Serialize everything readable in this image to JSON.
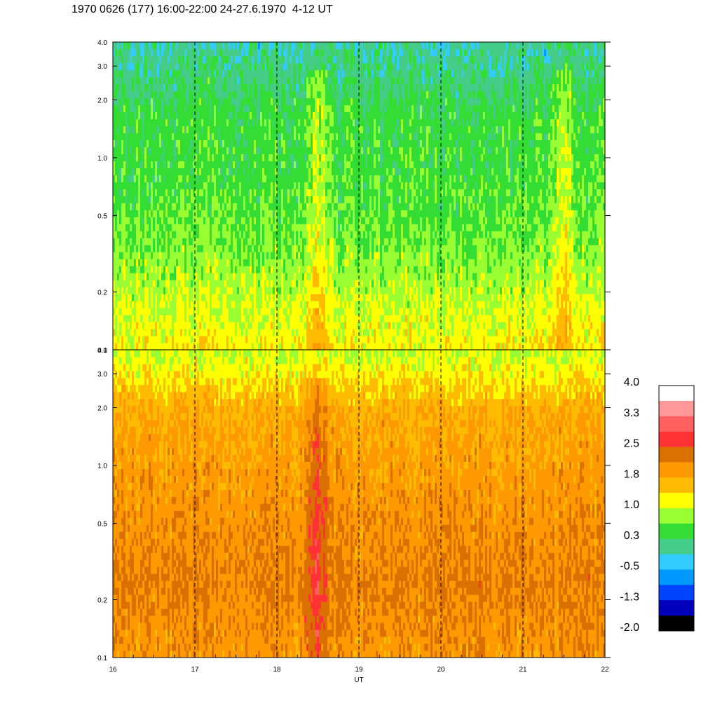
{
  "title": "1970 0626 (177) 16:00-22:00 24-27.6.1970  4-12 UT",
  "chart_data": {
    "type": "heatmap",
    "xlabel": "UT",
    "x_ticks": [
      "16",
      "17",
      "18",
      "19",
      "20",
      "21",
      "22"
    ],
    "x_range": [
      16,
      22
    ],
    "x_minor_step": 0.25,
    "dashed_time_markers": [
      17,
      18,
      19,
      20,
      21
    ],
    "panels": [
      {
        "name": "",
        "y_scale": "log",
        "y_range": [
          0.1,
          4.0
        ],
        "y_ticks": [
          "0.1",
          "0.2",
          "0.5",
          "1.0",
          "2.0",
          "3.0",
          "4.0"
        ],
        "description_level": "low",
        "bright_features_ut": [
          18.5,
          21.5
        ]
      },
      {
        "name": "",
        "y_scale": "log",
        "y_range": [
          0.1,
          4.0
        ],
        "y_ticks": [
          "0.1",
          "0.2",
          "0.5",
          "1.0",
          "2.0",
          "3.0",
          "4.0"
        ],
        "description_level": "high",
        "bright_features_ut": [
          18.5
        ]
      }
    ],
    "colorbar": {
      "labels": [
        "4.0",
        "3.3",
        "2.5",
        "1.8",
        "1.0",
        "0.3",
        "-0.5",
        "-1.3",
        "-2.0"
      ],
      "colors": [
        "#ffffff",
        "#ff9999",
        "#ff6060",
        "#ff3333",
        "#d97000",
        "#ff9900",
        "#ffbb00",
        "#ffff00",
        "#99ff33",
        "#33dd33",
        "#44cc88",
        "#33ccff",
        "#0099ff",
        "#0044ff",
        "#0000bb",
        "#000000"
      ]
    }
  }
}
